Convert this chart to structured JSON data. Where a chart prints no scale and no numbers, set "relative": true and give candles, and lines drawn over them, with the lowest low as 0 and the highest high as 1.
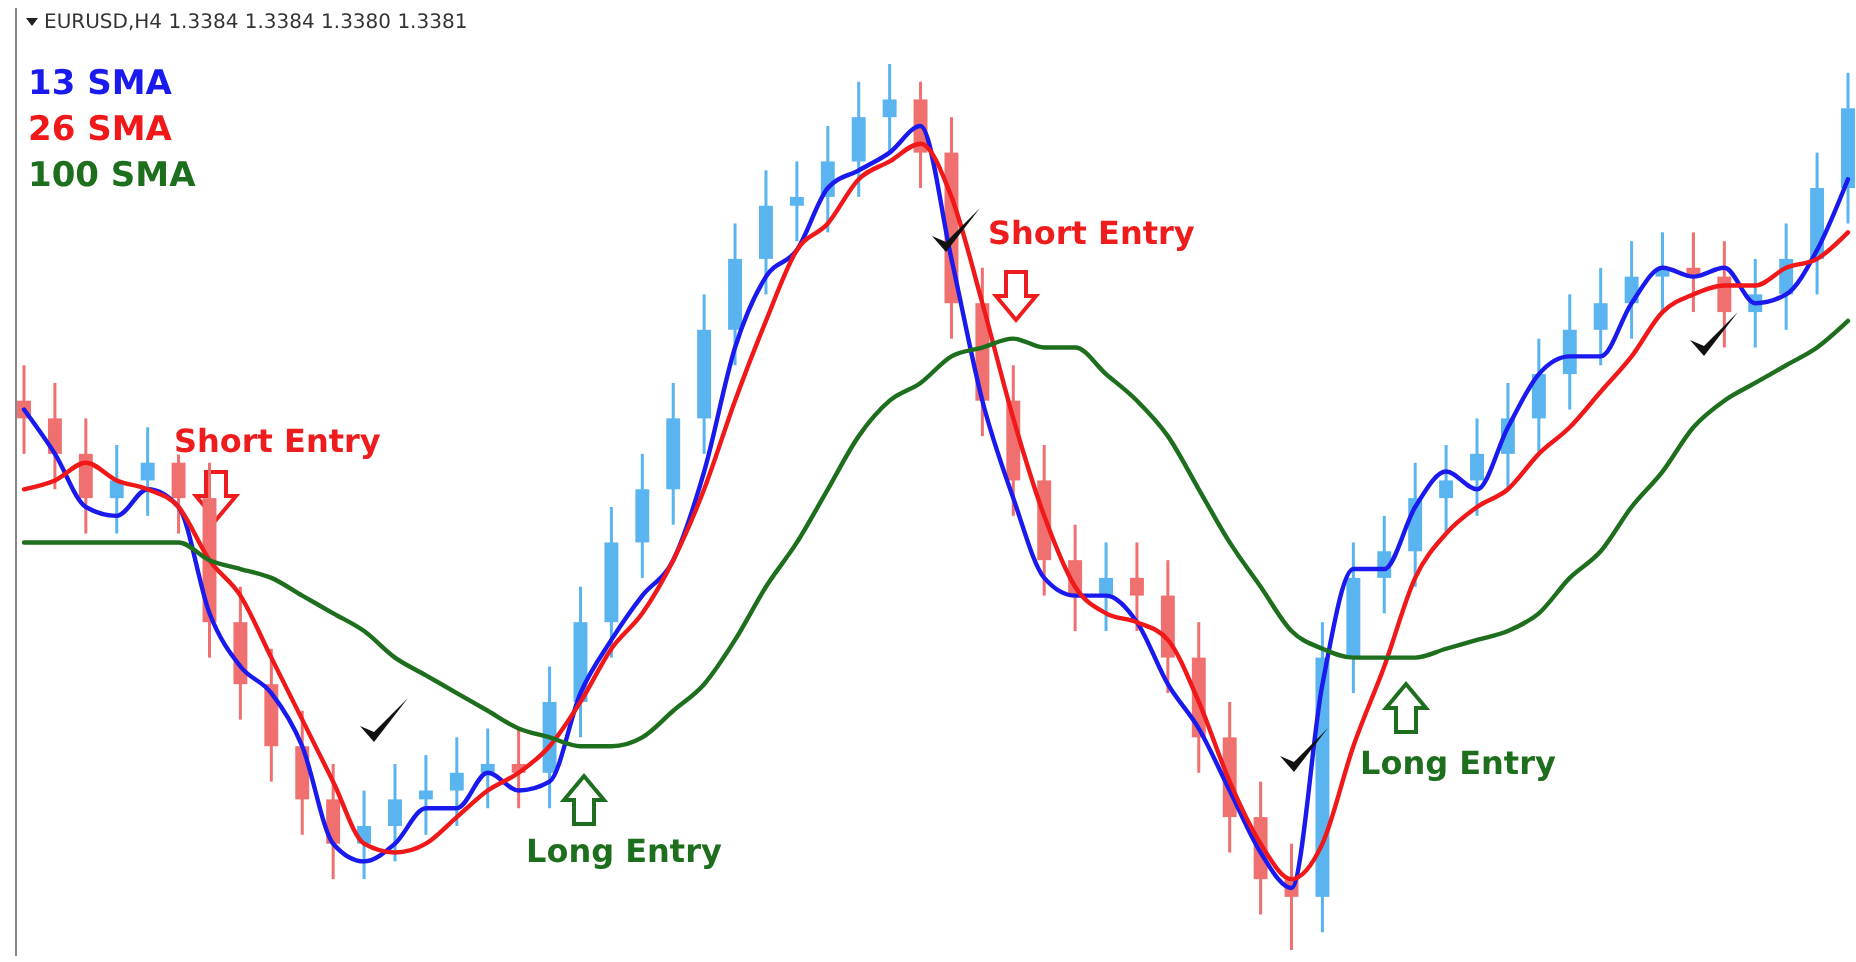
{
  "chart_data": {
    "type": "candlestick",
    "title": "EURUSD,H4 1.3384 1.3384 1.3380 1.3381",
    "relative": true,
    "legend": "top left",
    "grid": false,
    "categories": [
      null,
      null,
      null,
      null,
      null,
      null,
      null,
      null,
      null,
      null,
      null,
      null,
      null,
      null,
      null,
      null,
      null,
      null,
      null,
      null,
      null,
      null,
      null,
      null,
      null,
      null,
      null,
      null,
      null,
      null,
      null,
      null,
      null,
      null,
      null,
      null,
      null,
      null,
      null,
      null,
      null,
      null,
      null,
      null,
      null,
      null,
      null,
      null,
      null,
      null,
      null,
      null,
      null,
      null,
      null,
      null,
      null,
      null,
      null,
      null
    ],
    "ohlc": [
      [
        0.62,
        0.66,
        0.56,
        0.6
      ],
      [
        0.6,
        0.64,
        0.52,
        0.56
      ],
      [
        0.56,
        0.6,
        0.47,
        0.51
      ],
      [
        0.51,
        0.57,
        0.47,
        0.53
      ],
      [
        0.53,
        0.59,
        0.49,
        0.55
      ],
      [
        0.55,
        0.59,
        0.47,
        0.51
      ],
      [
        0.51,
        0.55,
        0.33,
        0.37
      ],
      [
        0.37,
        0.41,
        0.26,
        0.3
      ],
      [
        0.3,
        0.34,
        0.19,
        0.23
      ],
      [
        0.23,
        0.27,
        0.13,
        0.17
      ],
      [
        0.17,
        0.21,
        0.08,
        0.12
      ],
      [
        0.12,
        0.18,
        0.08,
        0.14
      ],
      [
        0.14,
        0.21,
        0.1,
        0.17
      ],
      [
        0.17,
        0.22,
        0.13,
        0.18
      ],
      [
        0.18,
        0.24,
        0.14,
        0.2
      ],
      [
        0.2,
        0.25,
        0.16,
        0.21
      ],
      [
        0.21,
        0.25,
        0.16,
        0.2
      ],
      [
        0.2,
        0.32,
        0.16,
        0.28
      ],
      [
        0.28,
        0.41,
        0.24,
        0.37
      ],
      [
        0.37,
        0.5,
        0.33,
        0.46
      ],
      [
        0.46,
        0.56,
        0.42,
        0.52
      ],
      [
        0.52,
        0.64,
        0.48,
        0.6
      ],
      [
        0.6,
        0.74,
        0.56,
        0.7
      ],
      [
        0.7,
        0.82,
        0.66,
        0.78
      ],
      [
        0.78,
        0.88,
        0.74,
        0.84
      ],
      [
        0.84,
        0.89,
        0.8,
        0.85
      ],
      [
        0.85,
        0.93,
        0.81,
        0.89
      ],
      [
        0.89,
        0.98,
        0.85,
        0.94
      ],
      [
        0.94,
        1.0,
        0.9,
        0.96
      ],
      [
        0.96,
        0.98,
        0.86,
        0.9
      ],
      [
        0.9,
        0.94,
        0.69,
        0.73
      ],
      [
        0.73,
        0.77,
        0.58,
        0.62
      ],
      [
        0.62,
        0.66,
        0.49,
        0.53
      ],
      [
        0.53,
        0.57,
        0.4,
        0.44
      ],
      [
        0.44,
        0.48,
        0.36,
        0.4
      ],
      [
        0.4,
        0.46,
        0.36,
        0.42
      ],
      [
        0.42,
        0.46,
        0.36,
        0.4
      ],
      [
        0.4,
        0.44,
        0.29,
        0.33
      ],
      [
        0.33,
        0.37,
        0.2,
        0.24
      ],
      [
        0.24,
        0.28,
        0.11,
        0.15
      ],
      [
        0.15,
        0.19,
        0.04,
        0.08
      ],
      [
        0.08,
        0.12,
        0,
        0.06
      ],
      [
        0.06,
        0.37,
        0.02,
        0.33
      ],
      [
        0.33,
        0.46,
        0.29,
        0.42
      ],
      [
        0.42,
        0.49,
        0.38,
        0.45
      ],
      [
        0.45,
        0.55,
        0.41,
        0.51
      ],
      [
        0.51,
        0.57,
        0.47,
        0.53
      ],
      [
        0.53,
        0.6,
        0.49,
        0.56
      ],
      [
        0.56,
        0.64,
        0.52,
        0.6
      ],
      [
        0.6,
        0.69,
        0.56,
        0.65
      ],
      [
        0.65,
        0.74,
        0.61,
        0.7
      ],
      [
        0.7,
        0.77,
        0.66,
        0.73
      ],
      [
        0.73,
        0.8,
        0.69,
        0.76
      ],
      [
        0.76,
        0.81,
        0.72,
        0.77
      ],
      [
        0.77,
        0.81,
        0.72,
        0.76
      ],
      [
        0.76,
        0.8,
        0.68,
        0.72
      ],
      [
        0.72,
        0.78,
        0.68,
        0.74
      ],
      [
        0.74,
        0.82,
        0.7,
        0.78
      ],
      [
        0.78,
        0.9,
        0.74,
        0.86
      ],
      [
        0.86,
        0.99,
        0.82,
        0.95
      ]
    ],
    "colors": [
      "#f07070",
      "#f07070",
      "#f07070",
      "#5ab4f0",
      "#5ab4f0",
      "#f07070",
      "#f07070",
      "#f07070",
      "#f07070",
      "#f07070",
      "#f07070",
      "#5ab4f0",
      "#5ab4f0",
      "#5ab4f0",
      "#5ab4f0",
      "#5ab4f0",
      "#f07070",
      "#5ab4f0",
      "#5ab4f0",
      "#5ab4f0",
      "#5ab4f0",
      "#5ab4f0",
      "#5ab4f0",
      "#5ab4f0",
      "#5ab4f0",
      "#5ab4f0",
      "#5ab4f0",
      "#5ab4f0",
      "#5ab4f0",
      "#f07070",
      "#f07070",
      "#f07070",
      "#f07070",
      "#f07070",
      "#f07070",
      "#5ab4f0",
      "#f07070",
      "#f07070",
      "#f07070",
      "#f07070",
      "#f07070",
      "#f07070",
      "#5ab4f0",
      "#5ab4f0",
      "#5ab4f0",
      "#5ab4f0",
      "#5ab4f0",
      "#5ab4f0",
      "#5ab4f0",
      "#5ab4f0",
      "#5ab4f0",
      "#5ab4f0",
      "#5ab4f0",
      "#5ab4f0",
      "#f07070",
      "#f07070",
      "#5ab4f0",
      "#5ab4f0",
      "#5ab4f0",
      "#5ab4f0"
    ],
    "series": [
      {
        "name": "13 SMA",
        "type": "line",
        "color": "#1a1aee",
        "values": [
          0.61,
          0.56,
          0.5,
          0.49,
          0.52,
          0.5,
          0.38,
          0.32,
          0.29,
          0.23,
          0.12,
          0.1,
          0.12,
          0.16,
          0.16,
          0.2,
          0.18,
          0.19,
          0.29,
          0.35,
          0.4,
          0.44,
          0.54,
          0.68,
          0.76,
          0.79,
          0.86,
          0.88,
          0.9,
          0.93,
          0.78,
          0.62,
          0.51,
          0.42,
          0.4,
          0.4,
          0.37,
          0.3,
          0.25,
          0.18,
          0.11,
          0.07,
          0.3,
          0.43,
          0.43,
          0.5,
          0.54,
          0.52,
          0.59,
          0.65,
          0.67,
          0.67,
          0.73,
          0.77,
          0.76,
          0.77,
          0.73,
          0.74,
          0.79,
          0.87
        ]
      },
      {
        "name": "26 SMA",
        "type": "line",
        "color": "#f01818",
        "values": [
          0.52,
          0.53,
          0.55,
          0.53,
          0.52,
          0.5,
          0.44,
          0.4,
          0.33,
          0.26,
          0.19,
          0.12,
          0.11,
          0.12,
          0.15,
          0.18,
          0.2,
          0.23,
          0.28,
          0.34,
          0.38,
          0.44,
          0.52,
          0.62,
          0.71,
          0.79,
          0.82,
          0.87,
          0.89,
          0.91,
          0.85,
          0.73,
          0.6,
          0.49,
          0.41,
          0.38,
          0.37,
          0.35,
          0.28,
          0.19,
          0.12,
          0.08,
          0.12,
          0.23,
          0.32,
          0.42,
          0.47,
          0.5,
          0.52,
          0.56,
          0.59,
          0.63,
          0.67,
          0.72,
          0.74,
          0.75,
          0.75,
          0.77,
          0.78,
          0.81
        ]
      },
      {
        "name": "100 SMA",
        "type": "line",
        "color": "#1d6e1d",
        "values": [
          0.46,
          0.46,
          0.46,
          0.46,
          0.46,
          0.46,
          0.44,
          0.43,
          0.42,
          0.4,
          0.38,
          0.36,
          0.33,
          0.31,
          0.29,
          0.27,
          0.25,
          0.24,
          0.23,
          0.23,
          0.24,
          0.27,
          0.3,
          0.35,
          0.41,
          0.46,
          0.52,
          0.58,
          0.62,
          0.64,
          0.67,
          0.68,
          0.69,
          0.68,
          0.68,
          0.65,
          0.62,
          0.58,
          0.52,
          0.46,
          0.41,
          0.36,
          0.34,
          0.33,
          0.33,
          0.33,
          0.34,
          0.35,
          0.36,
          0.38,
          0.42,
          0.45,
          0.5,
          0.54,
          0.59,
          0.62,
          0.64,
          0.66,
          0.68,
          0.71
        ]
      }
    ],
    "annotations": [
      "Short Entry",
      "Short Entry",
      "Long Entry",
      "Long Entry"
    ]
  }
}
